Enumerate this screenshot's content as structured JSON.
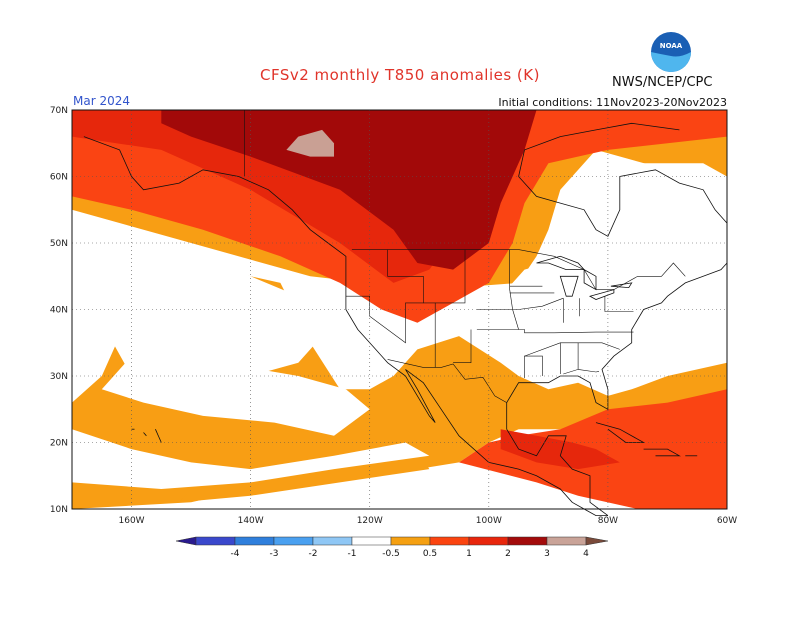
{
  "title": "CFSv2 monthly T850 anomalies (K)",
  "agency": "NWS/NCEP/CPC",
  "logo_text": "NOAA",
  "valid_month": "Mar 2024",
  "initial_conditions": "Initial conditions: 11Nov2023-20Nov2023",
  "map": {
    "lon_range": [
      -170,
      -60
    ],
    "lat_range": [
      10,
      70
    ],
    "lat_labels": [
      "70N",
      "60N",
      "50N",
      "40N",
      "30N",
      "20N",
      "10N"
    ],
    "lon_labels": [
      "160W",
      "140W",
      "120W",
      "100W",
      "80W",
      "60W"
    ]
  },
  "colorbar": {
    "labels": [
      "-4",
      "-3",
      "-2",
      "-1",
      "-0.5",
      "0.5",
      "1",
      "2",
      "3",
      "4"
    ],
    "colors": [
      "#2a1a8e",
      "#3a48cc",
      "#2f7fdc",
      "#4aa0f0",
      "#8fc7f5",
      "#ffffff",
      "#f5a012",
      "#fb4410",
      "#e8260c",
      "#a30b0b",
      "#c9a398",
      "#7a4a3a"
    ]
  },
  "anomaly_colors": {
    "c05": "#f89e14",
    "c1": "#fa4413",
    "c2": "#e6270c",
    "c3": "#a20909",
    "c4": "#c9a094"
  }
}
